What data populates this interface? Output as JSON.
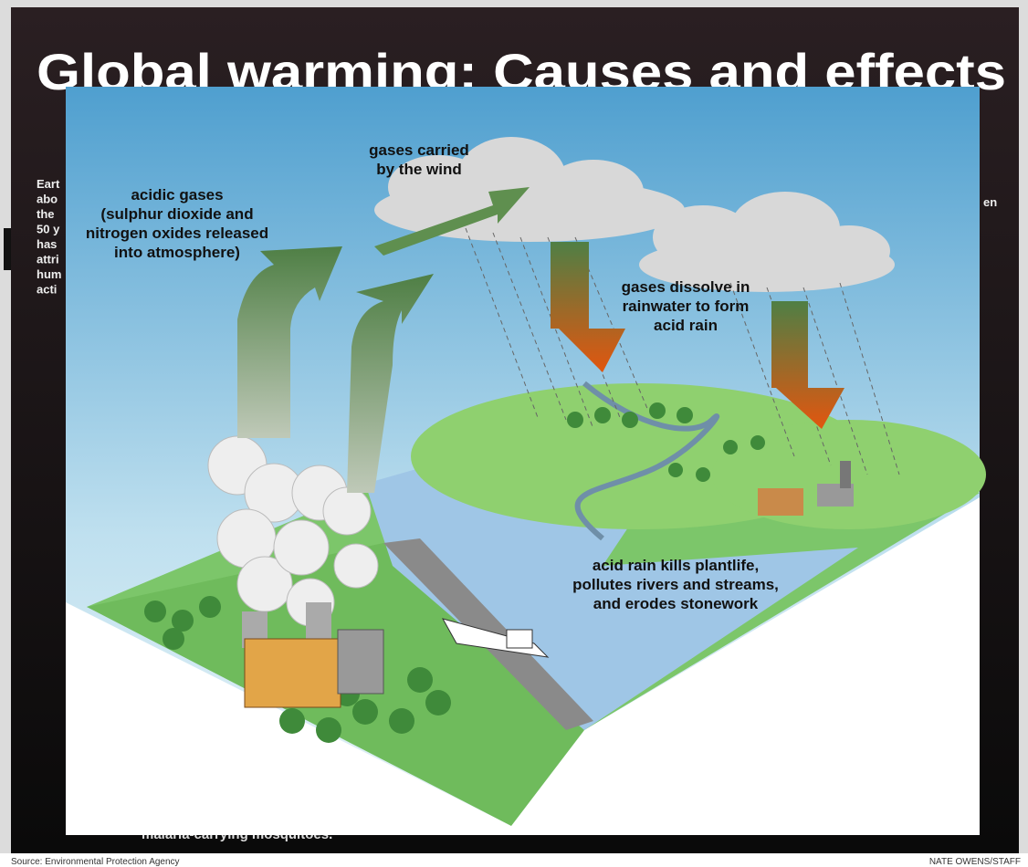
{
  "poster": {
    "title": "Global warming: Causes and effects",
    "side_text_left": [
      "Eart",
      "abo",
      "the",
      "50 y",
      "has",
      "attri",
      "hum",
      "acti"
    ],
    "side_text_right": "en",
    "bottom_text": "malaria-carrying mosquitoes."
  },
  "illustration": {
    "labels": [
      {
        "lines": [
          "acidic gases",
          "(sulphur dioxide and",
          "nitrogen oxides released",
          "into atmosphere)"
        ]
      },
      {
        "lines": [
          "gases carried",
          "by the wind"
        ]
      },
      {
        "lines": [
          "gases dissolve in",
          "rainwater to form",
          "acid rain"
        ]
      },
      {
        "lines": [
          "acid rain kills plantlife,",
          "pollutes rivers and streams,",
          "and erodes stonework"
        ]
      }
    ]
  },
  "footer": {
    "source": "Source: Environmental Protection Agency",
    "credit": "NATE OWENS/STAFF"
  }
}
